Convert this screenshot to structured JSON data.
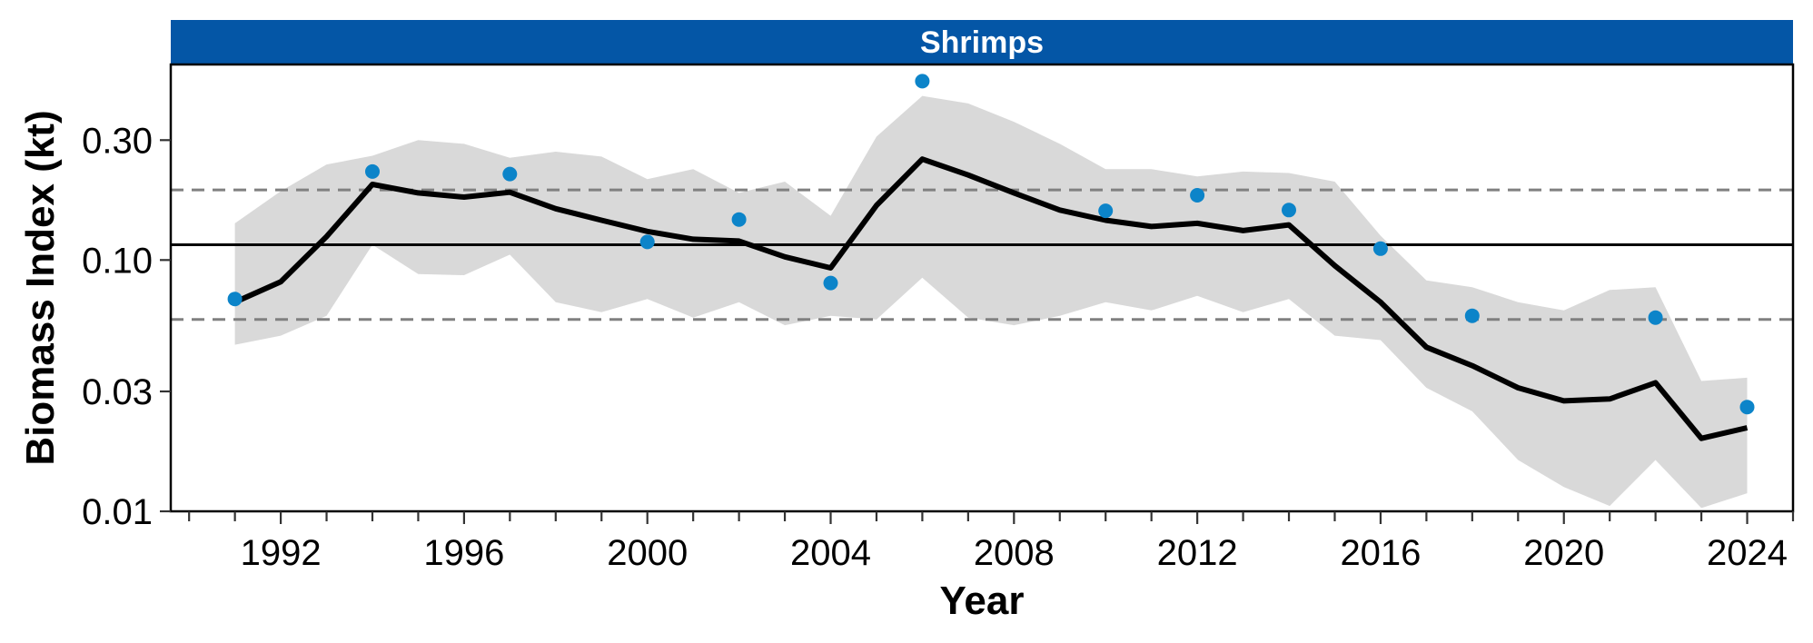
{
  "chart_data": {
    "type": "line",
    "title": "Shrimps",
    "xlabel": "Year",
    "ylabel": "Biomass Index (kt)",
    "y_scale": "log",
    "ylim": [
      0.01,
      0.6
    ],
    "xlim": [
      1989.6,
      2025.0
    ],
    "x_ticks": [
      1992,
      1996,
      2000,
      2004,
      2008,
      2012,
      2016,
      2020,
      2024
    ],
    "y_ticks": [
      0.01,
      0.03,
      0.1,
      0.3
    ],
    "y_tick_labels": [
      "0.01",
      "0.03",
      "0.10",
      "0.30"
    ],
    "grid": false,
    "reference_lines": {
      "mean": 0.115,
      "upper": 0.19,
      "lower": 0.058
    },
    "series": [
      {
        "kind": "line",
        "x": [
          1991,
          1992,
          1993,
          1994,
          1995,
          1996,
          1997,
          1998,
          1999,
          2000,
          2001,
          2002,
          2003,
          2004,
          2005,
          2006,
          2007,
          2008,
          2009,
          2010,
          2011,
          2012,
          2013,
          2014,
          2015,
          2016,
          2017,
          2018,
          2019,
          2020,
          2021,
          2022,
          2023,
          2024
        ],
        "y": [
          0.068,
          0.082,
          0.124,
          0.2,
          0.185,
          0.178,
          0.186,
          0.16,
          0.144,
          0.13,
          0.121,
          0.119,
          0.103,
          0.093,
          0.165,
          0.252,
          0.218,
          0.185,
          0.158,
          0.144,
          0.136,
          0.14,
          0.131,
          0.138,
          0.095,
          0.068,
          0.045,
          0.038,
          0.031,
          0.0275,
          0.028,
          0.0325,
          0.0195,
          0.0215
        ],
        "color": "#000000"
      },
      {
        "kind": "band",
        "x": [
          1991,
          1992,
          1993,
          1994,
          1995,
          1996,
          1997,
          1998,
          1999,
          2000,
          2001,
          2002,
          2003,
          2004,
          2005,
          2006,
          2007,
          2008,
          2009,
          2010,
          2011,
          2012,
          2013,
          2014,
          2015,
          2016,
          2017,
          2018,
          2019,
          2020,
          2021,
          2022,
          2023,
          2024
        ],
        "lower": [
          0.046,
          0.05,
          0.06,
          0.115,
          0.088,
          0.087,
          0.105,
          0.068,
          0.062,
          0.07,
          0.059,
          0.068,
          0.055,
          0.06,
          0.058,
          0.085,
          0.059,
          0.055,
          0.06,
          0.068,
          0.063,
          0.072,
          0.062,
          0.07,
          0.05,
          0.048,
          0.031,
          0.025,
          0.016,
          0.0125,
          0.0105,
          0.016,
          0.0103,
          0.0118
        ],
        "upper": [
          0.14,
          0.188,
          0.24,
          0.26,
          0.3,
          0.29,
          0.255,
          0.27,
          0.258,
          0.21,
          0.23,
          0.185,
          0.205,
          0.15,
          0.31,
          0.45,
          0.42,
          0.355,
          0.29,
          0.23,
          0.23,
          0.215,
          0.225,
          0.222,
          0.205,
          0.125,
          0.083,
          0.078,
          0.068,
          0.063,
          0.076,
          0.078,
          0.033,
          0.034
        ],
        "color": "#d9d9d9"
      },
      {
        "kind": "points",
        "x": [
          1991,
          1994,
          1997,
          2000,
          2002,
          2004,
          2006,
          2010,
          2012,
          2014,
          2016,
          2018,
          2022,
          2024
        ],
        "y": [
          0.07,
          0.225,
          0.22,
          0.118,
          0.145,
          0.081,
          0.515,
          0.157,
          0.181,
          0.158,
          0.111,
          0.06,
          0.059,
          0.026
        ],
        "color": "#0c84c9"
      }
    ]
  },
  "colors": {
    "strip": "#0456a6",
    "strip_text": "#ffffff",
    "band": "#d9d9d9",
    "line": "#000000",
    "points": "#0c84c9",
    "mean_line": "#000000",
    "bound_line": "#808080"
  }
}
